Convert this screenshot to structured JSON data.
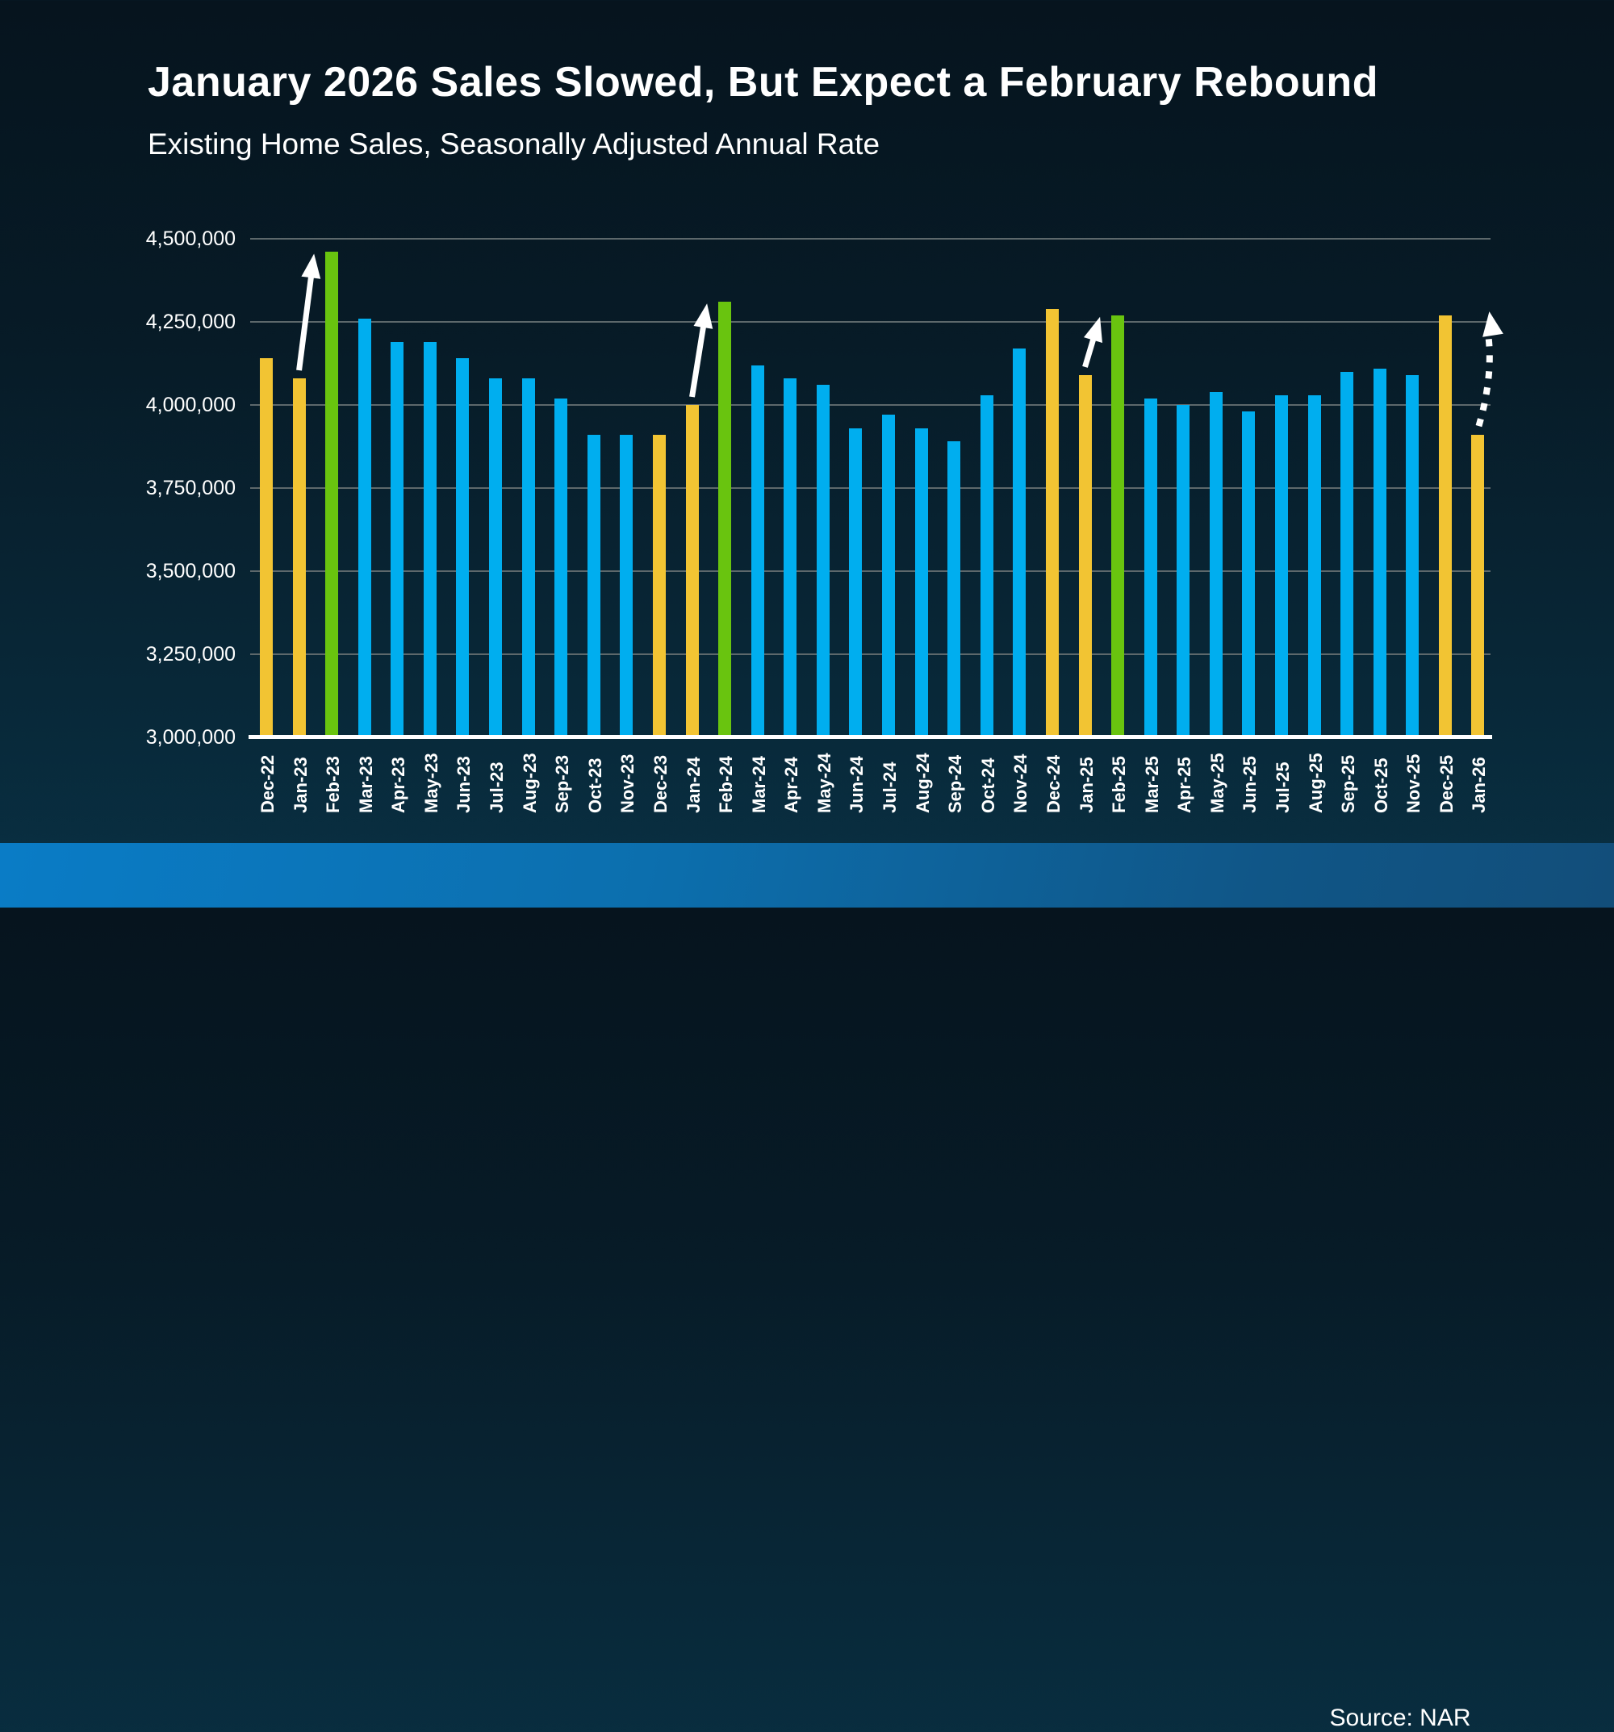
{
  "header": {
    "title": "January 2026 Sales Slowed, But Expect a February Rebound",
    "subtitle": "Existing Home Sales, Seasonally Adjusted Annual Rate"
  },
  "footer": {
    "source": "Source: NAR"
  },
  "colors": {
    "bar_default_blue": "#00aeef",
    "bar_dec_jan_yellow": "#f2c433",
    "bar_february_green": "#69c40f",
    "gridline": "#5d686b",
    "axis_line": "#ffffff",
    "arrow": "#ffffff"
  },
  "chart_data": {
    "type": "bar",
    "title": "Existing Home Sales, Seasonally Adjusted Annual Rate",
    "xlabel": "",
    "ylabel": "",
    "ylim": [
      3000000,
      4500000
    ],
    "grid": true,
    "ytick_values": [
      4500000,
      4250000,
      4000000,
      3750000,
      3500000,
      3250000,
      3000000
    ],
    "ytick_labels": [
      "4,500,000",
      "4,250,000",
      "4,000,000",
      "3,750,000",
      "3,500,000",
      "3,250,000",
      "3,000,000"
    ],
    "categories": [
      "Dec-22",
      "Jan-23",
      "Feb-23",
      "Mar-23",
      "Apr-23",
      "May-23",
      "Jun-23",
      "Jul-23",
      "Aug-23",
      "Sep-23",
      "Oct-23",
      "Nov-23",
      "Dec-23",
      "Jan-24",
      "Feb-24",
      "Mar-24",
      "Apr-24",
      "May-24",
      "Jun-24",
      "Jul-24",
      "Aug-24",
      "Sep-24",
      "Oct-24",
      "Nov-24",
      "Dec-24",
      "Jan-25",
      "Feb-25",
      "Mar-25",
      "Apr-25",
      "May-25",
      "Jun-25",
      "Jul-25",
      "Aug-25",
      "Sep-25",
      "Oct-25",
      "Nov-25",
      "Dec-25",
      "Jan-26"
    ],
    "values": [
      4140000,
      4080000,
      4460000,
      4260000,
      4190000,
      4190000,
      4140000,
      4080000,
      4080000,
      4020000,
      3910000,
      3910000,
      3910000,
      4000000,
      4310000,
      4120000,
      4080000,
      4060000,
      3930000,
      3970000,
      3930000,
      3890000,
      4030000,
      4170000,
      4290000,
      4090000,
      4270000,
      4020000,
      4000000,
      4040000,
      3980000,
      4030000,
      4030000,
      4100000,
      4110000,
      4090000,
      4270000,
      3910000
    ],
    "bar_color_keys": [
      "yellow",
      "yellow",
      "green",
      "blue",
      "blue",
      "blue",
      "blue",
      "blue",
      "blue",
      "blue",
      "blue",
      "blue",
      "yellow",
      "yellow",
      "green",
      "blue",
      "blue",
      "blue",
      "blue",
      "blue",
      "blue",
      "blue",
      "blue",
      "blue",
      "yellow",
      "yellow",
      "green",
      "blue",
      "blue",
      "blue",
      "blue",
      "blue",
      "blue",
      "blue",
      "blue",
      "blue",
      "yellow",
      "yellow"
    ],
    "legend": [],
    "annotations": [
      {
        "type": "arrow",
        "style": "solid",
        "from": "Jan-23",
        "to": "Feb-23"
      },
      {
        "type": "arrow",
        "style": "solid",
        "from": "Jan-24",
        "to": "Feb-24"
      },
      {
        "type": "arrow",
        "style": "solid",
        "from": "Jan-25",
        "to": "Feb-25"
      },
      {
        "type": "arrow",
        "style": "dashed",
        "from": "Jan-26",
        "to": "expected February rebound"
      }
    ]
  }
}
